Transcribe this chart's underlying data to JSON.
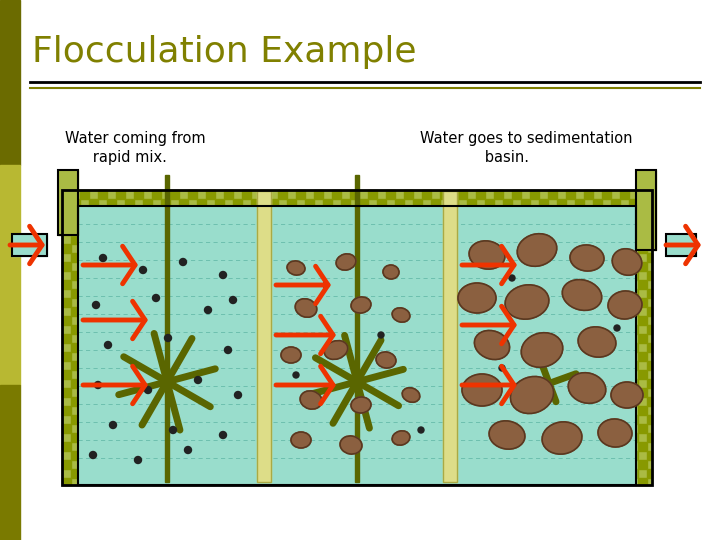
{
  "title": "Flocculation Example",
  "title_color": "#808000",
  "title_fontsize": 26,
  "label_left": "Water coming from\n      rapid mix.",
  "label_right": "Water goes to sedimentation\n              basin.",
  "bg_color": "#ffffff",
  "sidebar_top": "#6b6b00",
  "sidebar_mid": "#b8b832",
  "sidebar_bot": "#7a7a00",
  "tank_bg": "#99ddcc",
  "check_color": "#aabb44",
  "check_dark": "#889900",
  "divider_fill": "#dddd88",
  "divider_border": "#aaaa44",
  "paddle_color": "#5a6600",
  "arrow_color": "#ee3300",
  "floc_fill": "#8B6040",
  "floc_border": "#5a3820",
  "dot_color": "#222222",
  "pipe_fill": "#99ddcc",
  "pipe_border": "#000000",
  "line_color1": "#000000",
  "line_color2": "#808000",
  "tank_border": "#000000"
}
